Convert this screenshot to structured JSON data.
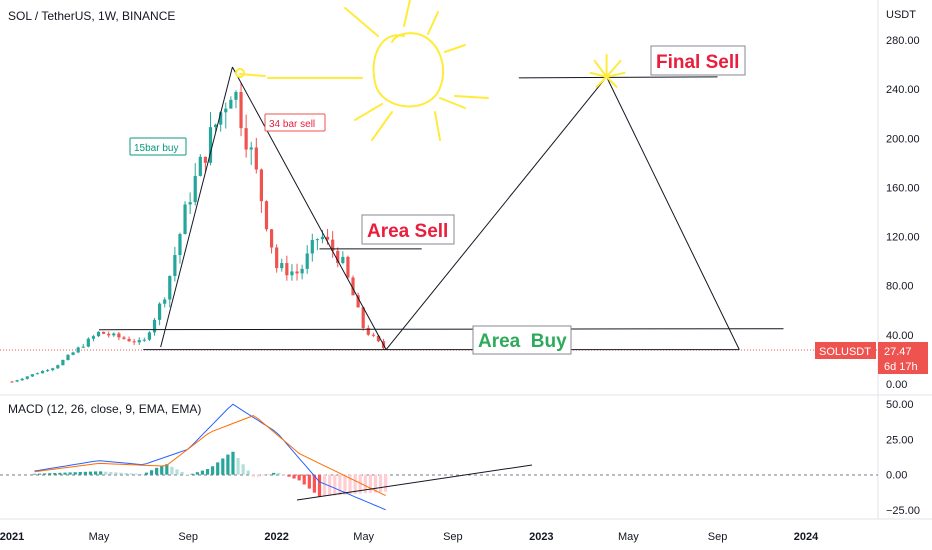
{
  "header": {
    "title": "SOL / TetherUS, 1W, BINANCE"
  },
  "price_axis": {
    "unit": "USDT",
    "ticks": [
      "280.00",
      "240.00",
      "200.00",
      "160.00",
      "120.00",
      "80.00",
      "40.00",
      "0.00"
    ]
  },
  "macd_axis": {
    "ticks": [
      "50.00",
      "25.00",
      "0.00",
      "−25.00"
    ]
  },
  "time_axis": {
    "ticks": [
      "2021",
      "May",
      "Sep",
      "2022",
      "May",
      "Sep",
      "2023",
      "May",
      "Sep",
      "2024"
    ]
  },
  "price_badge": {
    "symbol": "SOLUSDT",
    "price": "27.47",
    "countdown": "6d 17h"
  },
  "annotations": {
    "buy_15bar": "15bar buy",
    "sell_34bar": "34 bar sell",
    "area_sell": "Area Sell",
    "final_sell": "Final Sell",
    "area_buy": "Area  Buy"
  },
  "indicator": {
    "label": "MACD (12, 26, close, 9, EMA, EMA)"
  },
  "colors": {
    "up": "#26a69a",
    "down": "#ef5350",
    "macd_line": "#2962ff",
    "signal_line": "#ff6d00",
    "sun": "#ffeb3b",
    "sell_text": "#e91e3c",
    "buy_text": "#2eaa5c",
    "teal_text": "#089981"
  },
  "chart_data": {
    "type": "candlestick",
    "symbol": "SOLUSDT",
    "interval": "1W",
    "exchange": "BINANCE",
    "y_unit": "USDT",
    "price_ylim": [
      0,
      290
    ],
    "macd_ylim": [
      -28,
      55
    ],
    "last_price": 27.47,
    "approx_weekly_close_path": [
      {
        "t": "2021-01",
        "close": 2
      },
      {
        "t": "2021-03",
        "close": 14
      },
      {
        "t": "2021-05",
        "close": 42
      },
      {
        "t": "2021-07",
        "close": 33
      },
      {
        "t": "2021-08",
        "close": 75
      },
      {
        "t": "2021-09",
        "close": 150
      },
      {
        "t": "2021-10",
        "close": 200
      },
      {
        "t": "2021-11",
        "close": 245
      },
      {
        "t": "2021-12",
        "close": 178
      },
      {
        "t": "2022-01",
        "close": 95
      },
      {
        "t": "2022-02",
        "close": 90
      },
      {
        "t": "2022-03",
        "close": 122
      },
      {
        "t": "2022-04",
        "close": 100
      },
      {
        "t": "2022-05",
        "close": 45
      },
      {
        "t": "2022-06",
        "close": 27.47
      }
    ],
    "horizontal_levels": [
      {
        "name": "Final Sell",
        "price": 250
      },
      {
        "name": "Area Sell",
        "price": 110
      },
      {
        "name": "Area  Buy",
        "price": 45
      },
      {
        "name": "Area  Buy",
        "price": 28
      }
    ],
    "projection_path": [
      {
        "t": "2022-06",
        "price": 28
      },
      {
        "t": "2023-04",
        "price": 250
      },
      {
        "t": "2023-10",
        "price": 28
      }
    ],
    "macd": {
      "params": "12, 26, close, 9, EMA, EMA",
      "macd_path": [
        {
          "t": "2021-01",
          "v": 0
        },
        {
          "t": "2021-05",
          "v": 10
        },
        {
          "t": "2021-07",
          "v": 7
        },
        {
          "t": "2021-09",
          "v": 18
        },
        {
          "t": "2021-11",
          "v": 50
        },
        {
          "t": "2022-01",
          "v": 30
        },
        {
          "t": "2022-03",
          "v": -5
        },
        {
          "t": "2022-06",
          "v": -25
        }
      ],
      "signal_path": [
        {
          "t": "2021-01",
          "v": 0
        },
        {
          "t": "2021-05",
          "v": 8
        },
        {
          "t": "2021-08",
          "v": 6
        },
        {
          "t": "2021-10",
          "v": 30
        },
        {
          "t": "2021-12",
          "v": 42
        },
        {
          "t": "2022-02",
          "v": 15
        },
        {
          "t": "2022-06",
          "v": -15
        }
      ]
    }
  }
}
